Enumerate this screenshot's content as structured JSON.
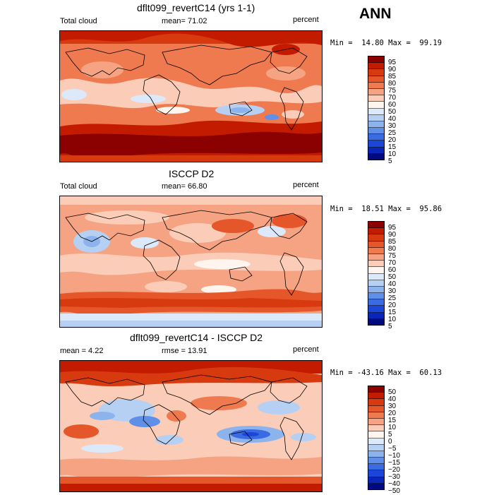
{
  "season": "ANN",
  "units": "percent",
  "panels": [
    {
      "title": "dflt099_revertC14 (yrs 1-1)",
      "left_label": "Total cloud",
      "center_label": "mean=  71.02",
      "right_label": "percent",
      "minmax": "Min =  14.80 Max =  99.19",
      "colorbar": {
        "labels": [
          "95",
          "90",
          "85",
          "80",
          "75",
          "70",
          "60",
          "50",
          "40",
          "30",
          "25",
          "20",
          "15",
          "10",
          "5"
        ],
        "colors": [
          "#8b0000",
          "#c21b00",
          "#d83a10",
          "#e5572a",
          "#ef7a50",
          "#f5a383",
          "#fbcdb8",
          "#fff5ef",
          "#dce9fa",
          "#b6d0f3",
          "#8db3ec",
          "#5f8fe6",
          "#3a6be2",
          "#1c46d8",
          "#0a26b8",
          "#000a80"
        ]
      }
    },
    {
      "title": "ISCCP D2",
      "left_label": "Total cloud",
      "center_label": "mean=  66.80",
      "right_label": "percent",
      "minmax": "Min =  18.51 Max =  95.86",
      "colorbar": {
        "labels": [
          "95",
          "90",
          "85",
          "80",
          "75",
          "70",
          "60",
          "50",
          "40",
          "30",
          "25",
          "20",
          "15",
          "10",
          "5"
        ],
        "colors": [
          "#8b0000",
          "#c21b00",
          "#d83a10",
          "#e5572a",
          "#ef7a50",
          "#f5a383",
          "#fbcdb8",
          "#fff5ef",
          "#dce9fa",
          "#b6d0f3",
          "#8db3ec",
          "#5f8fe6",
          "#3a6be2",
          "#1c46d8",
          "#0a26b8",
          "#000a80"
        ]
      }
    },
    {
      "title": "dflt099_revertC14 - ISCCP D2",
      "left_label": "mean =    4.22",
      "center_label": "rmse =  13.91",
      "right_label": "percent",
      "minmax": "Min = -43.16 Max =  60.13",
      "colorbar": {
        "labels": [
          "50",
          "40",
          "30",
          "20",
          "15",
          "10",
          "5",
          "0",
          "−5",
          "−10",
          "−15",
          "−20",
          "−30",
          "−40",
          "−50"
        ],
        "colors": [
          "#8b0000",
          "#c21b00",
          "#d83a10",
          "#e5572a",
          "#ef7a50",
          "#f5a383",
          "#fbcdb8",
          "#fff5ef",
          "#dce9fa",
          "#b6d0f3",
          "#8db3ec",
          "#5f8fe6",
          "#3a6be2",
          "#1c46d8",
          "#0a26b8",
          "#000a80"
        ]
      }
    }
  ]
}
